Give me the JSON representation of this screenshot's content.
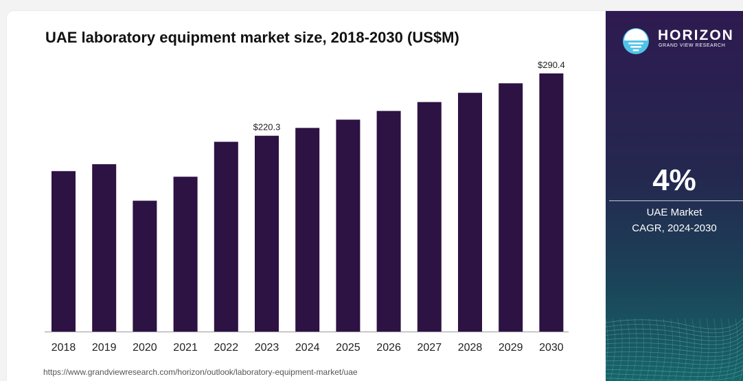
{
  "title": "UAE laboratory equipment market size, 2018-2030 (US$M)",
  "source_url": "https://www.grandviewresearch.com/horizon/outlook/laboratory-equipment-market/uae",
  "brand": {
    "name": "HORIZON",
    "tagline": "GRAND VIEW RESEARCH"
  },
  "highlight": {
    "value": "4%",
    "label_line1": "UAE Market",
    "label_line2": "CAGR, 2024-2030"
  },
  "colors": {
    "bar": "#2d1244",
    "panel_top": "#2e1a50",
    "panel_bottom": "#16666a",
    "logo_accent": "#4fc3e8"
  },
  "chart_data": {
    "type": "bar",
    "title": "UAE laboratory equipment market size, 2018-2030 (US$M)",
    "xlabel": "",
    "ylabel": "",
    "categories": [
      "2018",
      "2019",
      "2020",
      "2021",
      "2022",
      "2023",
      "2024",
      "2025",
      "2026",
      "2027",
      "2028",
      "2029",
      "2030"
    ],
    "values": [
      180.5,
      188.3,
      147.2,
      174.2,
      213.5,
      220.3,
      229.1,
      238.4,
      248.2,
      258.2,
      268.6,
      279.3,
      290.4
    ],
    "data_labels": [
      {
        "category": "2023",
        "text": "$220.3"
      },
      {
        "category": "2030",
        "text": "$290.4"
      }
    ],
    "ylim": [
      0,
      295
    ],
    "grid": false,
    "legend": "none"
  }
}
